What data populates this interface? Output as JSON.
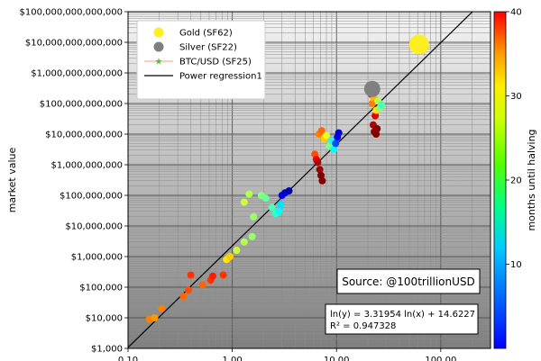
{
  "chart_data": {
    "type": "scatter",
    "xscale": "log",
    "yscale": "log",
    "xlim": [
      0.1,
      300
    ],
    "ylim": [
      1000,
      100000000000000
    ],
    "ylabel": "market value",
    "xticks": [
      "0.10",
      "1.00",
      "10.00",
      "100.00"
    ],
    "xtick_values": [
      0.1,
      1,
      10,
      100
    ],
    "yticks": [
      "$1,000",
      "$10,000",
      "$100,000",
      "$1,000,000",
      "$10,000,000",
      "$100,000,000",
      "$1,000,000,000",
      "$10,000,000,000",
      "$100,000,000,000",
      "$1,000,000,000,000",
      "$10,000,000,000,000",
      "$100,000,000,000,000"
    ],
    "ytick_values": [
      1000,
      10000,
      100000,
      1000000,
      10000000,
      100000000,
      1000000000,
      10000000000,
      100000000000,
      1000000000000,
      10000000000000,
      100000000000000
    ],
    "grid": true,
    "legend_position": "top-left",
    "legend": [
      {
        "label": "Gold (SF62)",
        "kind": "marker",
        "color": "#ffee22"
      },
      {
        "label": "Silver (SF22)",
        "kind": "marker",
        "color": "#808080"
      },
      {
        "label": "BTC/USD (SF25)",
        "kind": "line-star",
        "color": "#ff9999",
        "star_color": "#44cc22"
      },
      {
        "label": "Power regression1",
        "kind": "line",
        "color": "#000000"
      }
    ],
    "colorbar": {
      "label": "months until halving",
      "min": 0,
      "max": 40,
      "ticks": [
        10,
        20,
        30,
        40
      ],
      "colormap": "jet"
    },
    "regression": {
      "a": 3.31954,
      "b": 14.6227,
      "equation": "ln(y) = 3.31954 ln(x) + 14.6227",
      "r2": "R² = 0.947328"
    },
    "annotation": "Source: @100trillionUSD",
    "special_points": [
      {
        "name": "Gold",
        "x": 62,
        "y": 8500000000000,
        "color": "#ffee22",
        "size": 11
      },
      {
        "name": "Silver",
        "x": 22,
        "y": 300000000000,
        "color": "#808080",
        "size": 9
      }
    ],
    "btc_points": [
      {
        "x": 0.16,
        "y": 9000,
        "m": 30
      },
      {
        "x": 0.18,
        "y": 10000,
        "m": 29
      },
      {
        "x": 0.21,
        "y": 20000,
        "m": 30
      },
      {
        "x": 0.34,
        "y": 50000,
        "m": 31
      },
      {
        "x": 0.38,
        "y": 80000,
        "m": 32
      },
      {
        "x": 0.4,
        "y": 250000,
        "m": 33
      },
      {
        "x": 0.52,
        "y": 120000,
        "m": 31
      },
      {
        "x": 0.62,
        "y": 170000,
        "m": 33
      },
      {
        "x": 0.65,
        "y": 230000,
        "m": 34
      },
      {
        "x": 0.82,
        "y": 250000,
        "m": 33
      },
      {
        "x": 0.88,
        "y": 800000,
        "m": 26
      },
      {
        "x": 0.95,
        "y": 1000000,
        "m": 27
      },
      {
        "x": 1.1,
        "y": 1600000,
        "m": 23
      },
      {
        "x": 1.3,
        "y": 3000000,
        "m": 22
      },
      {
        "x": 1.55,
        "y": 4500000,
        "m": 21
      },
      {
        "x": 1.3,
        "y": 60000000,
        "m": 23
      },
      {
        "x": 1.45,
        "y": 110000000,
        "m": 22
      },
      {
        "x": 1.6,
        "y": 20000000,
        "m": 21
      },
      {
        "x": 1.9,
        "y": 100000000,
        "m": 20
      },
      {
        "x": 2.1,
        "y": 80000000,
        "m": 19
      },
      {
        "x": 2.4,
        "y": 40000000,
        "m": 18
      },
      {
        "x": 2.6,
        "y": 25000000,
        "m": 17
      },
      {
        "x": 2.8,
        "y": 30000000,
        "m": 15
      },
      {
        "x": 2.9,
        "y": 50000000,
        "m": 14
      },
      {
        "x": 3.0,
        "y": 100000000,
        "m": 5
      },
      {
        "x": 3.2,
        "y": 120000000,
        "m": 3
      },
      {
        "x": 3.5,
        "y": 140000000,
        "m": 2
      },
      {
        "x": 6.2,
        "y": 2200000000,
        "m": 32
      },
      {
        "x": 6.4,
        "y": 1500000000,
        "m": 35
      },
      {
        "x": 6.6,
        "y": 1200000000,
        "m": 38
      },
      {
        "x": 6.9,
        "y": 700000000,
        "m": 39
      },
      {
        "x": 7.1,
        "y": 450000000,
        "m": 40
      },
      {
        "x": 7.3,
        "y": 300000000,
        "m": 40
      },
      {
        "x": 6.8,
        "y": 10000000000,
        "m": 30
      },
      {
        "x": 7.2,
        "y": 13000000000,
        "m": 31
      },
      {
        "x": 7.6,
        "y": 7000000000,
        "m": 27
      },
      {
        "x": 8.0,
        "y": 9000000000,
        "m": 24
      },
      {
        "x": 8.5,
        "y": 4000000000,
        "m": 20
      },
      {
        "x": 9.0,
        "y": 6000000000,
        "m": 16
      },
      {
        "x": 9.4,
        "y": 3200000000,
        "m": 15
      },
      {
        "x": 9.8,
        "y": 5000000000,
        "m": 8
      },
      {
        "x": 10.2,
        "y": 8000000000,
        "m": 5
      },
      {
        "x": 10.5,
        "y": 11000000000,
        "m": 3
      },
      {
        "x": 21.5,
        "y": 200000000000,
        "m": 34
      },
      {
        "x": 22.0,
        "y": 100000000000,
        "m": 30
      },
      {
        "x": 23.0,
        "y": 150000000000,
        "m": 28
      },
      {
        "x": 23.5,
        "y": 40000000000,
        "m": 36
      },
      {
        "x": 24.0,
        "y": 60000000000,
        "m": 26
      },
      {
        "x": 25.0,
        "y": 120000000000,
        "m": 22
      },
      {
        "x": 26.0,
        "y": 70000000000,
        "m": 20
      },
      {
        "x": 27.0,
        "y": 90000000000,
        "m": 18
      },
      {
        "x": 22.5,
        "y": 20000000000,
        "m": 38
      },
      {
        "x": 23.0,
        "y": 12000000000,
        "m": 39
      },
      {
        "x": 24.0,
        "y": 10000000000,
        "m": 40
      },
      {
        "x": 24.5,
        "y": 15000000000,
        "m": 40
      }
    ]
  }
}
